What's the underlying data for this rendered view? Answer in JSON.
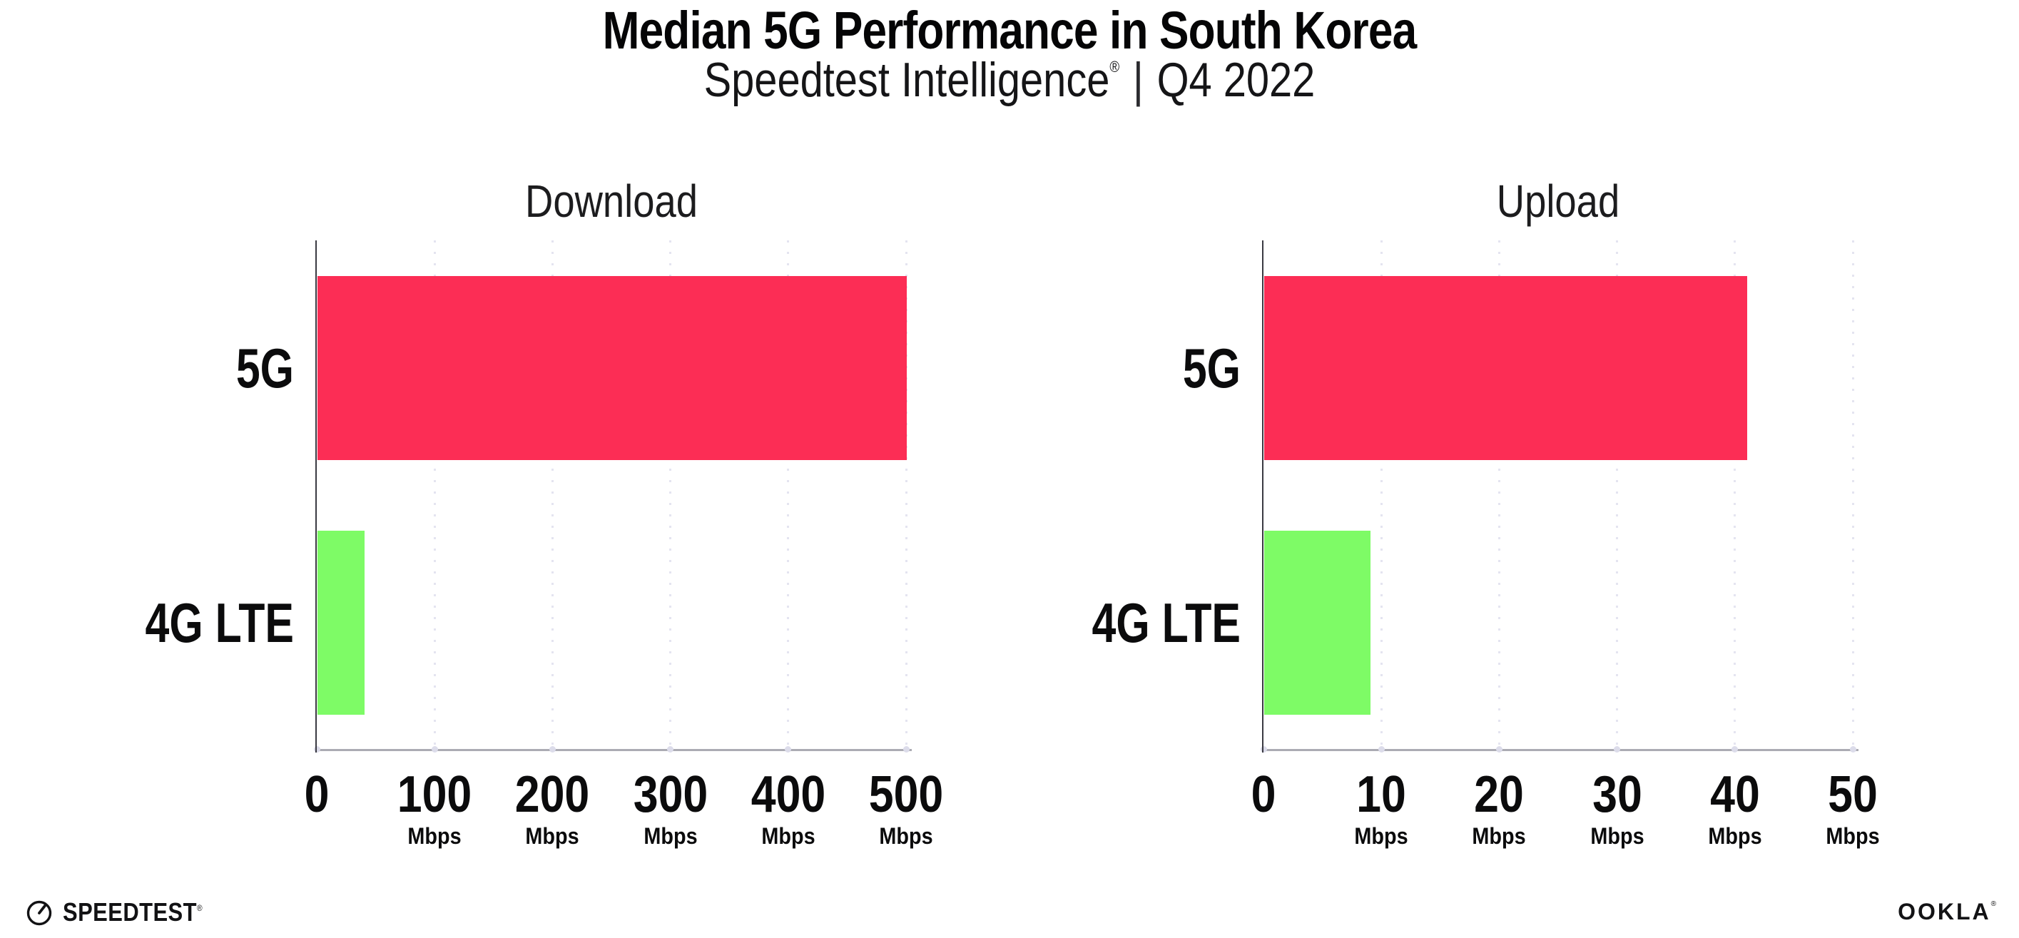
{
  "header": {
    "title": "Median 5G Performance in South Korea",
    "subtitle_brand": "Speedtest Intelligence",
    "subtitle_reg": "®",
    "subtitle_sep": "|",
    "subtitle_period": "Q4 2022"
  },
  "footer": {
    "speedtest_text": "SPEEDTEST",
    "speedtest_reg": "®",
    "ookla_text": "OOKLA",
    "ookla_reg": "®"
  },
  "colors": {
    "bar_5g": "#FC2D55",
    "bar_4g_lte": "#7EFB66",
    "gridline_dotted": "#E4E4F0",
    "y_axis_line": "#3A3A42",
    "x_axis_line": "#ABABB3",
    "axis_tick_dot": "#DCDCEA",
    "text": "#0B0B0C",
    "background": "#FFFFFF"
  },
  "chart_data": [
    {
      "type": "bar",
      "orientation": "horizontal",
      "title": "Download",
      "categories": [
        "5G",
        "4G LTE"
      ],
      "values": [
        500,
        40
      ],
      "unit": "Mbps",
      "xlabel": "",
      "ylabel": "",
      "xlim": [
        0,
        500
      ],
      "xticks": [
        0,
        100,
        200,
        300,
        400,
        500
      ],
      "grid": "vertical dotted gridlines at each tick",
      "legend": "none",
      "bar_colors": [
        "#FC2D55",
        "#7EFB66"
      ]
    },
    {
      "type": "bar",
      "orientation": "horizontal",
      "title": "Upload",
      "categories": [
        "5G",
        "4G LTE"
      ],
      "values": [
        41,
        9
      ],
      "unit": "Mbps",
      "xlabel": "",
      "ylabel": "",
      "xlim": [
        0,
        50
      ],
      "xticks": [
        0,
        10,
        20,
        30,
        40,
        50
      ],
      "grid": "vertical dotted gridlines at each tick",
      "legend": "none",
      "bar_colors": [
        "#FC2D55",
        "#7EFB66"
      ]
    }
  ]
}
